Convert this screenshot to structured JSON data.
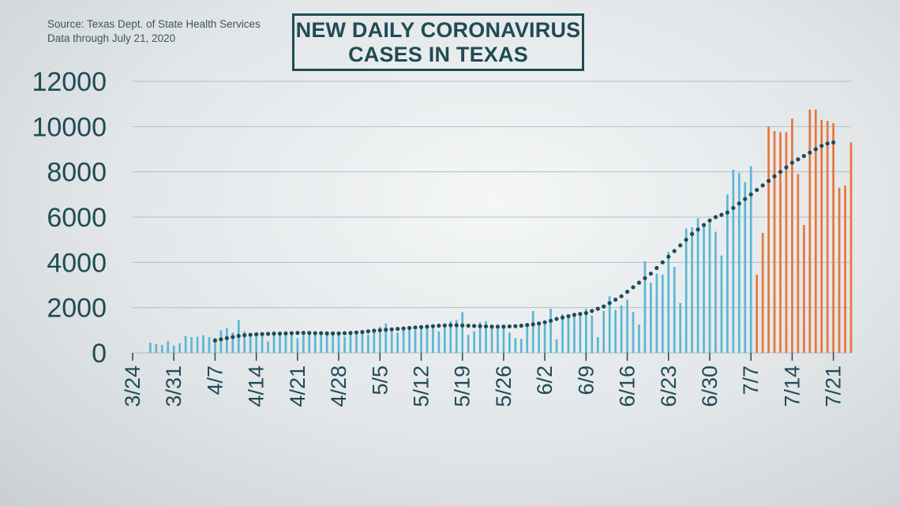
{
  "header": {
    "source_line": "Source: Texas Dept. of State Health Services",
    "data_through": "Data through  July 21, 2020",
    "title_line1": "NEW DAILY CORONAVIRUS",
    "title_line2": "CASES IN TEXAS"
  },
  "colors": {
    "bar_blue": "#5cb6d4",
    "bar_orange": "#e8763a",
    "avg_dot": "#1f4b55",
    "grid": "#b3bec4",
    "text": "#1f4b55"
  },
  "chart_data": {
    "type": "bar",
    "title": "NEW DAILY CORONAVIRUS CASES IN TEXAS",
    "start_date": "3/24",
    "end_date": "7/21",
    "ylim": [
      0,
      12000
    ],
    "y_ticks": [
      0,
      2000,
      4000,
      6000,
      8000,
      10000,
      12000
    ],
    "x_ticks": [
      "3/24",
      "3/31",
      "4/7",
      "4/14",
      "4/21",
      "4/28",
      "5/5",
      "5/12",
      "5/19",
      "5/26",
      "6/2",
      "6/9",
      "6/16",
      "6/23",
      "6/30",
      "7/7",
      "7/14",
      "7/21"
    ],
    "grid": "horizontal",
    "daily_new_cases": [
      0,
      0,
      0,
      450,
      380,
      350,
      520,
      320,
      430,
      750,
      700,
      710,
      780,
      690,
      650,
      1000,
      1100,
      900,
      1450,
      950,
      850,
      800,
      900,
      500,
      950,
      850,
      900,
      850,
      650,
      780,
      920,
      900,
      880,
      860,
      820,
      900,
      720,
      850,
      900,
      850,
      800,
      1000,
      1150,
      1300,
      1100,
      900,
      1000,
      1050,
      1000,
      1150,
      1250,
      1100,
      950,
      1300,
      1400,
      1450,
      1800,
      800,
      950,
      1350,
      1400,
      1250,
      1150,
      1100,
      900,
      650,
      620,
      1200,
      1850,
      1250,
      1250,
      1950,
      600,
      1700,
      1700,
      1650,
      1700,
      1950,
      1650,
      700,
      1850,
      2500,
      1900,
      2100,
      2350,
      1800,
      1250,
      4050,
      3100,
      3500,
      3450,
      4450,
      3800,
      2200,
      5500,
      5550,
      5950,
      5700,
      5750,
      5350,
      4300,
      7000,
      8100,
      7950,
      7550,
      8250,
      3450,
      5300,
      10000,
      9800,
      9750,
      9750,
      10350,
      7900,
      5650,
      10750,
      10750,
      10300,
      10250,
      10150,
      7300,
      7400,
      9300
    ],
    "orange_from_date": "7/8",
    "seven_day_average_dots": [
      550,
      600,
      650,
      700,
      750,
      780,
      800,
      820,
      830,
      840,
      850,
      850,
      860,
      870,
      880,
      880,
      880,
      870,
      870,
      860,
      860,
      860,
      870,
      880,
      900,
      920,
      950,
      980,
      1000,
      1020,
      1040,
      1060,
      1080,
      1100,
      1120,
      1140,
      1160,
      1180,
      1200,
      1210,
      1220,
      1220,
      1210,
      1200,
      1190,
      1180,
      1170,
      1160,
      1160,
      1160,
      1170,
      1180,
      1200,
      1230,
      1260,
      1300,
      1350,
      1420,
      1500,
      1560,
      1620,
      1680,
      1720,
      1760,
      1850,
      1950,
      2050,
      2200,
      2350,
      2500,
      2700,
      2900,
      3100,
      3300,
      3500,
      3750,
      4000,
      4250,
      4500,
      4750,
      5000,
      5250,
      5450,
      5650,
      5850,
      6000,
      6100,
      6200,
      6400,
      6600,
      6800,
      7000,
      7200,
      7400,
      7600,
      7800,
      8000,
      8200,
      8400,
      8550,
      8700,
      8850,
      9000,
      9150,
      9250,
      9300
    ]
  }
}
